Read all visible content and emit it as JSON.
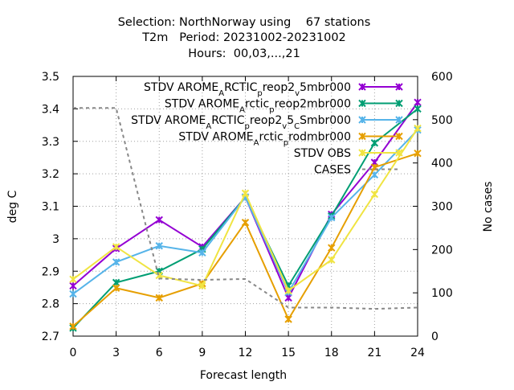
{
  "header": {
    "title_line1": "Selection: NorthNorway using    67 stations",
    "title_line2": "T2m   Period: 20231002-20231002",
    "title_line3": "Hours:  00,03,...,21"
  },
  "chart_data": {
    "type": "line",
    "xlabel": "Forecast length",
    "ylabel": "deg C",
    "y2label": "No cases",
    "x": [
      0,
      3,
      6,
      9,
      12,
      15,
      18,
      21,
      24
    ],
    "xticks": [
      "0",
      "3",
      "6",
      "9",
      "12",
      "15",
      "18",
      "21",
      "24"
    ],
    "ylim": [
      2.7,
      3.5
    ],
    "yticks": [
      "2.7",
      "2.8",
      "2.9",
      "3",
      "3.1",
      "3.2",
      "3.3",
      "3.4",
      "3.5"
    ],
    "y2lim": [
      0,
      600
    ],
    "y2ticks": [
      "0",
      "100",
      "200",
      "300",
      "400",
      "500",
      "600"
    ],
    "grid": true,
    "legend_position": "top-right",
    "series": [
      {
        "name": "STDV AROME_ARCTIC_preop2_v5mbr000",
        "legend_parts": [
          [
            "STDV AROME",
            "b"
          ],
          [
            "A",
            "sub"
          ],
          [
            "RCTIC",
            "b"
          ],
          [
            "p",
            "sub"
          ],
          [
            "reop2",
            "b"
          ],
          [
            "v",
            "sub"
          ],
          [
            "5mbr000",
            "b"
          ]
        ],
        "color": "#9400d3",
        "marker": "x",
        "axis": "y1",
        "values": [
          2.855,
          2.97,
          3.058,
          2.975,
          3.128,
          2.818,
          3.075,
          3.235,
          3.42
        ]
      },
      {
        "name": "STDV AROME_Arctic_preop2mbr000",
        "legend_parts": [
          [
            "STDV AROME",
            "b"
          ],
          [
            "A",
            "sub"
          ],
          [
            "rctic",
            "b"
          ],
          [
            "p",
            "sub"
          ],
          [
            "reop2mbr000",
            "b"
          ]
        ],
        "color": "#009e73",
        "marker": "x",
        "axis": "y1",
        "values": [
          2.725,
          2.865,
          2.9,
          2.968,
          3.128,
          2.855,
          3.07,
          3.295,
          3.4
        ]
      },
      {
        "name": "STDV AROME_ARCTIC_preop2_v5_CSmbr000",
        "legend_parts": [
          [
            "STDV AROME",
            "b"
          ],
          [
            "A",
            "sub"
          ],
          [
            "RCTIC",
            "b"
          ],
          [
            "p",
            "sub"
          ],
          [
            "reop2",
            "b"
          ],
          [
            "v",
            "sub"
          ],
          [
            "5",
            "b"
          ],
          [
            "C",
            "sub"
          ],
          [
            "Smbr000",
            "b"
          ]
        ],
        "color": "#56b4e9",
        "marker": "x",
        "axis": "y1",
        "values": [
          2.83,
          2.928,
          2.978,
          2.957,
          3.128,
          2.835,
          3.065,
          3.197,
          3.335
        ]
      },
      {
        "name": "STDV AROME_Arctic_prodmbr000",
        "legend_parts": [
          [
            "STDV AROME",
            "b"
          ],
          [
            "A",
            "sub"
          ],
          [
            "rctic",
            "b"
          ],
          [
            "p",
            "sub"
          ],
          [
            "rodmbr000",
            "b"
          ]
        ],
        "color": "#e69f00",
        "marker": "x",
        "axis": "y1",
        "values": [
          2.73,
          2.848,
          2.818,
          2.862,
          3.05,
          2.752,
          2.972,
          3.22,
          3.263
        ]
      },
      {
        "name": "STDV OBS",
        "legend_parts": [
          [
            "STDV OBS",
            "b"
          ]
        ],
        "color": "#f0e442",
        "marker": "x",
        "axis": "y1",
        "values": [
          2.875,
          2.975,
          2.887,
          2.855,
          3.14,
          2.84,
          2.935,
          3.137,
          3.34
        ]
      },
      {
        "name": "CASES",
        "legend_parts": [
          [
            "CASES",
            "b"
          ]
        ],
        "color": "#888888",
        "marker": "none",
        "dashed": true,
        "axis": "y2",
        "values": [
          527,
          527,
          133,
          130,
          132,
          66,
          66,
          63,
          66
        ]
      }
    ]
  }
}
